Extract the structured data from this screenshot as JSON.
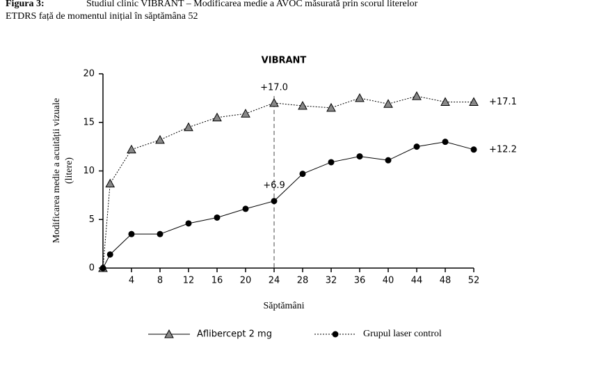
{
  "caption": {
    "label": "Figura 3:",
    "text": "Studiul clinic VIBRANT – Modificarea medie a AVOC măsurată prin scorul literelor",
    "text2": "ETDRS față de momentul inițial în săptămâna 52"
  },
  "chart_data": {
    "type": "line",
    "title": "VIBRANT",
    "x_label": "Săptămâni",
    "y_label": "Modificarea medie a acuității vizuale",
    "y_label2": "(litere)",
    "x": [
      0,
      1,
      4,
      8,
      12,
      16,
      20,
      24,
      28,
      32,
      36,
      40,
      44,
      48,
      52
    ],
    "series": [
      {
        "name": "Aflibercept 2 mg",
        "color": "#888888",
        "marker": "triangle",
        "dashed": true,
        "values": [
          0,
          8.7,
          12.2,
          13.2,
          14.5,
          15.5,
          15.9,
          17.0,
          16.7,
          16.5,
          17.5,
          16.9,
          17.7,
          17.1,
          17.1
        ],
        "value_labels": [
          null,
          null,
          null,
          null,
          null,
          null,
          null,
          "+17.0",
          null,
          null,
          null,
          null,
          null,
          null,
          "+17.1"
        ]
      },
      {
        "name": "Grupul laser control",
        "color": "#000000",
        "marker": "circle",
        "dashed": false,
        "values": [
          0,
          1.4,
          3.5,
          3.5,
          4.6,
          5.2,
          6.1,
          6.9,
          9.7,
          10.9,
          11.5,
          11.1,
          12.5,
          13.0,
          12.2
        ],
        "value_labels": [
          null,
          null,
          null,
          null,
          null,
          null,
          null,
          "+6.9",
          null,
          null,
          null,
          null,
          null,
          null,
          "+12.2"
        ]
      }
    ],
    "xlim": [
      0,
      52
    ],
    "xticks": [
      4,
      8,
      12,
      16,
      20,
      24,
      28,
      32,
      36,
      40,
      44,
      48,
      52
    ],
    "ylim": [
      0,
      20
    ],
    "yticks": [
      0,
      5,
      10,
      15,
      20
    ],
    "reference_x": 24,
    "grid": false
  }
}
